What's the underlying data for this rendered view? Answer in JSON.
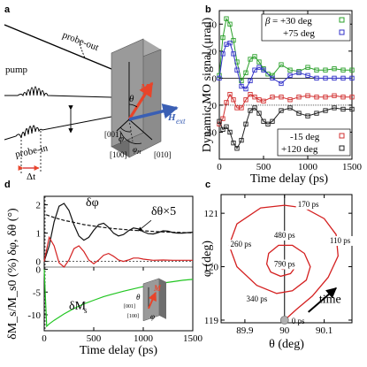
{
  "panels": {
    "a": {
      "label": "a",
      "beams": [
        "probe-out",
        "pump",
        "probe-in"
      ],
      "delay_label": "Δt",
      "vectors": {
        "magnetization": "M",
        "external_field": "H",
        "external_field_sub": "ext"
      },
      "angles": {
        "theta": "θ",
        "phi": "φ",
        "phi_h": "φ",
        "phi_h_sub": "H"
      },
      "directions": [
        "[001]",
        "[100]",
        "[010]"
      ],
      "colors": {
        "magnetization": "#e8442a",
        "external_field": "#3a5fb4",
        "sample": "#8c8c8c"
      }
    },
    "b": {
      "label": "b"
    },
    "c": {
      "label": "c"
    },
    "d": {
      "label": "d",
      "curve_labels": {
        "dphi": "δφ",
        "dtheta": "δθ×5",
        "dMs_main": "δM",
        "dMs_sub": "s"
      },
      "inset": {
        "magnetization": "M",
        "angles": [
          "θ",
          "φ"
        ],
        "directions": [
          "[001]",
          "[100]"
        ]
      }
    }
  },
  "chart_data": [
    {
      "panel": "b",
      "type": "scatter",
      "xlabel": "Time delay (ps)",
      "ylabel": "Dynamic MO signal (μrad)",
      "xlim": [
        0,
        1500
      ],
      "xticks": [
        0,
        500,
        1000,
        1500
      ],
      "ylim": [
        -60,
        50
      ],
      "yticks": [
        -40,
        -20,
        0,
        20,
        40
      ],
      "zero_line": true,
      "legend_top": {
        "position": "top-right",
        "prefix": "β = ",
        "entries": [
          "+30 deg",
          "+75 deg"
        ]
      },
      "legend_bottom": {
        "position": "bottom-right",
        "entries": [
          "-15 deg",
          "+120 deg"
        ]
      },
      "series": [
        {
          "name": "+30 deg",
          "color": "#2aa02a",
          "marker": "open-square",
          "offset": 20,
          "x": [
            0,
            40,
            80,
            120,
            160,
            200,
            250,
            300,
            350,
            400,
            450,
            500,
            550,
            600,
            700,
            800,
            900,
            1000,
            1100,
            1200,
            1300,
            1400,
            1500
          ],
          "y": [
            2,
            30,
            44,
            40,
            28,
            12,
            -2,
            4,
            14,
            16,
            12,
            7,
            3,
            2,
            10,
            6,
            5,
            8,
            6,
            6,
            7,
            6,
            6
          ]
        },
        {
          "name": "+75 deg",
          "color": "#3030c8",
          "marker": "open-square",
          "offset": 0,
          "x": [
            0,
            40,
            80,
            120,
            160,
            200,
            250,
            300,
            350,
            400,
            450,
            500,
            600,
            700,
            800,
            900,
            1000,
            1100,
            1200,
            1300,
            1400,
            1500
          ],
          "y": [
            0,
            18,
            25,
            26,
            18,
            6,
            -6,
            -8,
            -2,
            6,
            8,
            6,
            0,
            -4,
            2,
            4,
            2,
            0,
            0,
            0,
            0,
            0
          ]
        },
        {
          "name": "-15 deg",
          "color": "#d23030",
          "marker": "open-square",
          "offset": -20,
          "x": [
            0,
            40,
            80,
            120,
            160,
            200,
            250,
            300,
            350,
            400,
            450,
            500,
            600,
            700,
            800,
            900,
            1000,
            1100,
            1200,
            1300,
            1400,
            1500
          ],
          "y": [
            -34,
            -30,
            -18,
            -12,
            -16,
            -22,
            -22,
            -16,
            -12,
            -14,
            -16,
            -17,
            -14,
            -14,
            -16,
            -14,
            -13,
            -14,
            -14,
            -13,
            -14,
            -14
          ]
        },
        {
          "name": "+120 deg",
          "color": "#202020",
          "marker": "open-square",
          "offset": -20,
          "x": [
            0,
            40,
            80,
            120,
            160,
            200,
            250,
            300,
            350,
            400,
            450,
            500,
            550,
            600,
            700,
            800,
            900,
            1000,
            1100,
            1200,
            1300,
            1400,
            1500
          ],
          "y": [
            -32,
            -38,
            -36,
            -40,
            -48,
            -52,
            -46,
            -34,
            -24,
            -22,
            -26,
            -32,
            -34,
            -32,
            -24,
            -22,
            -26,
            -28,
            -26,
            -24,
            -22,
            -23,
            -23
          ]
        }
      ]
    },
    {
      "panel": "c",
      "type": "line",
      "xlabel": "θ (deg)",
      "ylabel": "φ (deg)",
      "xlim": [
        89.84,
        90.17
      ],
      "xticks": [
        89.9,
        90.0,
        90.1
      ],
      "ylim": [
        118.95,
        121.35
      ],
      "yticks": [
        119,
        120,
        121
      ],
      "grid": false,
      "color": "#d42020",
      "vertical_line_x": 90.0,
      "start_marker": {
        "x": 90.0,
        "y": 119.0,
        "label": "0 ps"
      },
      "time_arrow_label": "time",
      "time_labels": [
        {
          "label": "170 ps",
          "x": 90.06,
          "y": 121.12
        },
        {
          "label": "110 ps",
          "x": 90.14,
          "y": 120.44
        },
        {
          "label": "260 ps",
          "x": 89.89,
          "y": 120.37
        },
        {
          "label": "480 ps",
          "x": 90.0,
          "y": 120.54
        },
        {
          "label": "790 ps",
          "x": 90.0,
          "y": 120.0
        },
        {
          "label": "340 ps",
          "x": 89.93,
          "y": 119.35
        }
      ],
      "points": [
        [
          90.0,
          119.0
        ],
        [
          90.03,
          119.2
        ],
        [
          90.07,
          119.45
        ],
        [
          90.11,
          119.8
        ],
        [
          90.135,
          120.2
        ],
        [
          90.13,
          120.6
        ],
        [
          90.1,
          120.9
        ],
        [
          90.05,
          121.1
        ],
        [
          90.0,
          121.15
        ],
        [
          89.94,
          121.1
        ],
        [
          89.88,
          120.8
        ],
        [
          89.86,
          120.4
        ],
        [
          89.88,
          120.0
        ],
        [
          89.93,
          119.65
        ],
        [
          89.98,
          119.5
        ],
        [
          90.02,
          119.55
        ],
        [
          90.055,
          119.75
        ],
        [
          90.065,
          120.0
        ],
        [
          90.05,
          120.25
        ],
        [
          90.02,
          120.4
        ],
        [
          89.985,
          120.4
        ],
        [
          89.96,
          120.25
        ],
        [
          89.955,
          120.05
        ],
        [
          89.965,
          119.9
        ],
        [
          89.99,
          119.82
        ],
        [
          90.015,
          119.87
        ],
        [
          90.025,
          119.97
        ],
        [
          90.02,
          120.07
        ],
        [
          90.0,
          120.1
        ],
        [
          89.985,
          120.05
        ],
        [
          89.985,
          119.98
        ],
        [
          89.995,
          119.95
        ],
        [
          90.005,
          119.97
        ],
        [
          90.0,
          120.0
        ]
      ]
    },
    {
      "panel": "d",
      "type": "line",
      "xlabel": "Time delay (ps)",
      "ylabel_top": "δφ, δθ (°)",
      "ylabel_bottom": "δM_s/M_s0 (%)",
      "xlim": [
        0,
        1500
      ],
      "xticks": [
        0,
        500,
        1000,
        1500
      ],
      "ylim_top": [
        -0.2,
        2.3
      ],
      "yticks_top": [
        0,
        1,
        2
      ],
      "ylim_bottom": [
        -13.5,
        0.5
      ],
      "yticks_bottom": [
        0,
        -5,
        -10
      ],
      "series": [
        {
          "name": "δφ",
          "color": "#111111",
          "x": [
            0,
            50,
            100,
            150,
            200,
            250,
            300,
            350,
            400,
            450,
            500,
            550,
            600,
            650,
            700,
            750,
            800,
            850,
            900,
            950,
            1000,
            1050,
            1100,
            1150,
            1200,
            1250,
            1300,
            1350,
            1400,
            1450,
            1500
          ],
          "y": [
            0,
            0.55,
            1.4,
            1.95,
            2.05,
            1.8,
            1.3,
            0.9,
            0.75,
            0.85,
            1.1,
            1.3,
            1.35,
            1.2,
            1.0,
            0.9,
            0.95,
            1.08,
            1.18,
            1.15,
            1.05,
            0.98,
            0.97,
            1.02,
            1.08,
            1.07,
            1.02,
            1.0,
            1.0,
            1.02,
            1.03
          ]
        },
        {
          "name": "δθ×5",
          "color": "#111111",
          "dashed": true,
          "x": [
            20,
            100,
            200,
            300,
            400,
            500,
            600,
            700,
            800,
            900,
            1000,
            1100,
            1200,
            1300,
            1400,
            1500
          ],
          "y": [
            1.65,
            1.55,
            1.45,
            1.38,
            1.3,
            1.25,
            1.2,
            1.16,
            1.13,
            1.1,
            1.08,
            1.06,
            1.04,
            1.03,
            1.02,
            1.01
          ]
        },
        {
          "name": "δθ",
          "color": "#d42020",
          "x": [
            0,
            50,
            100,
            150,
            200,
            250,
            300,
            350,
            400,
            450,
            500,
            550,
            600,
            650,
            700,
            750,
            800,
            850,
            900,
            950,
            1000,
            1100,
            1200,
            1300,
            1400,
            1500
          ],
          "y": [
            0,
            0.85,
            0.55,
            -0.05,
            -0.2,
            0.05,
            0.45,
            0.55,
            0.35,
            0.05,
            -0.08,
            0.05,
            0.22,
            0.28,
            0.18,
            0.05,
            0.0,
            0.05,
            0.12,
            0.12,
            0.08,
            0.04,
            0.05,
            0.04,
            0.04,
            0.04
          ]
        },
        {
          "name": "δM_s",
          "color": "#22c622",
          "panel_part": "bottom",
          "x": [
            0,
            25,
            50,
            100,
            150,
            200,
            300,
            400,
            500,
            600,
            700,
            800,
            900,
            1000,
            1100,
            1200,
            1300,
            1400,
            1500
          ],
          "y": [
            0,
            -12.5,
            -12.0,
            -11.2,
            -10.5,
            -9.8,
            -8.6,
            -7.6,
            -6.8,
            -6.0,
            -5.4,
            -4.8,
            -4.3,
            -3.8,
            -3.4,
            -3.0,
            -2.7,
            -2.4,
            -2.2
          ]
        }
      ]
    }
  ]
}
